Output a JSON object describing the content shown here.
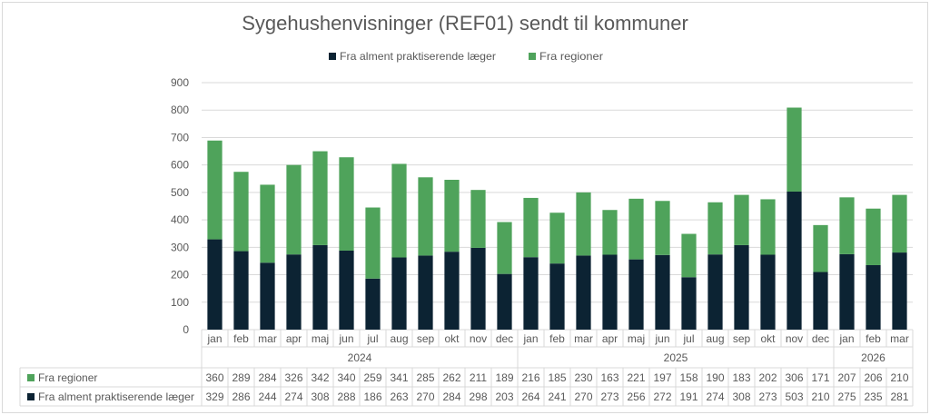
{
  "chart_data": {
    "type": "bar",
    "stacked": true,
    "title": "Sygehushenvisninger (REF01) sendt til kommuner",
    "legend_position": "top",
    "grid": true,
    "ylim": [
      0,
      900
    ],
    "yticks": [
      0,
      100,
      200,
      300,
      400,
      500,
      600,
      700,
      800,
      900
    ],
    "categories": [
      "jan",
      "feb",
      "mar",
      "apr",
      "maj",
      "jun",
      "jul",
      "aug",
      "sep",
      "okt",
      "nov",
      "dec",
      "jan",
      "feb",
      "mar",
      "apr",
      "maj",
      "jun",
      "jul",
      "aug",
      "sep",
      "okt",
      "nov",
      "dec",
      "jan",
      "feb",
      "mar"
    ],
    "year_groups": [
      {
        "label": "2024",
        "count": 12
      },
      {
        "label": "2025",
        "count": 12
      },
      {
        "label": "2026",
        "count": 3
      }
    ],
    "series": [
      {
        "name": "Fra alment praktiserende læger",
        "color": "#0c2333",
        "values": [
          329,
          286,
          244,
          274,
          308,
          288,
          186,
          263,
          270,
          284,
          298,
          203,
          264,
          241,
          270,
          273,
          256,
          272,
          191,
          274,
          308,
          273,
          503,
          210,
          275,
          235,
          281
        ]
      },
      {
        "name": "Fra regioner",
        "color": "#4fa35b",
        "values": [
          360,
          289,
          284,
          326,
          342,
          340,
          259,
          341,
          285,
          262,
          211,
          189,
          216,
          185,
          230,
          163,
          221,
          197,
          158,
          190,
          183,
          202,
          306,
          171,
          207,
          206,
          210
        ]
      }
    ],
    "table_row_order": [
      1,
      0
    ]
  }
}
